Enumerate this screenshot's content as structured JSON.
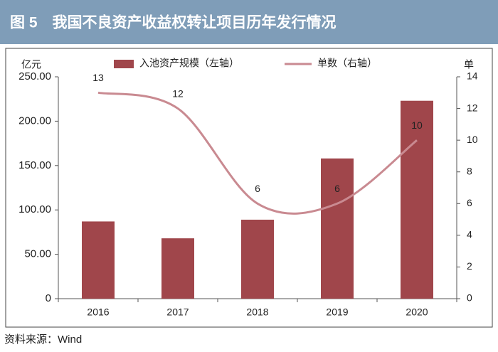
{
  "chart_data": {
    "type": "combo",
    "title": "图 5　我国不良资产收益权转让项目历年发行情况",
    "source": "资料来源：Wind",
    "y_label": "亿元",
    "y2_label": "单",
    "categories": [
      "2016",
      "2017",
      "2018",
      "2019",
      "2020"
    ],
    "series": [
      {
        "name": "入池资产规模（左轴）",
        "type": "bar",
        "color": "#a0464b",
        "values": [
          87,
          68,
          89,
          158,
          223
        ]
      },
      {
        "name": "单数（右轴）",
        "type": "line",
        "color": "#c98a91",
        "axis": "y2",
        "values": [
          13,
          12,
          6,
          6,
          10
        ],
        "smooth": true
      }
    ],
    "ylim": [
      0,
      250
    ],
    "yticks": [
      0,
      {
        "value": 50,
        "label": "50.00"
      },
      {
        "value": 100,
        "label": "100.00"
      },
      {
        "value": 150,
        "label": "150.00"
      },
      {
        "value": 200,
        "label": "200.00"
      },
      {
        "value": 250,
        "label": "250.00"
      }
    ],
    "y2lim": [
      0,
      14
    ],
    "y2ticks": [
      0,
      2,
      4,
      6,
      8,
      10,
      12,
      14
    ],
    "legend": "top",
    "grid": false
  }
}
